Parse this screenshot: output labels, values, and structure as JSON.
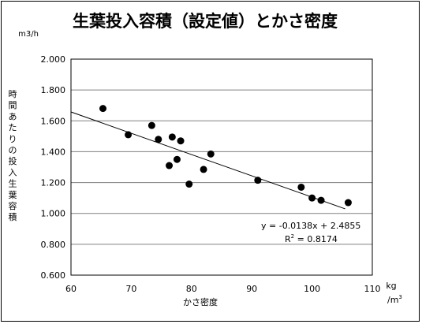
{
  "chart_data": {
    "type": "scatter",
    "title": "生葉投入容積（設定値）とかさ密度",
    "unit_label": "m3/h",
    "ylabel": "時間あたりの投入生葉容積",
    "xlabel": "かさ密度",
    "x_unit_top": "kg",
    "x_unit_bottom": "/m",
    "x_unit_sup": "3",
    "xlim": [
      60,
      110
    ],
    "ylim": [
      0.6,
      2.0
    ],
    "x_ticks": [
      "60",
      "70",
      "80",
      "90",
      "100",
      "110"
    ],
    "y_ticks": [
      "0.600",
      "0.800",
      "1.000",
      "1.200",
      "1.400",
      "1.600",
      "1.800",
      "2.000"
    ],
    "grid": "horizontal",
    "points": [
      {
        "x": 65.3,
        "y": 1.68
      },
      {
        "x": 69.5,
        "y": 1.51
      },
      {
        "x": 73.4,
        "y": 1.57
      },
      {
        "x": 74.5,
        "y": 1.48
      },
      {
        "x": 76.3,
        "y": 1.31
      },
      {
        "x": 76.8,
        "y": 1.495
      },
      {
        "x": 77.6,
        "y": 1.35
      },
      {
        "x": 78.2,
        "y": 1.47
      },
      {
        "x": 79.6,
        "y": 1.19
      },
      {
        "x": 82.0,
        "y": 1.285
      },
      {
        "x": 83.2,
        "y": 1.385
      },
      {
        "x": 91.0,
        "y": 1.215
      },
      {
        "x": 98.2,
        "y": 1.17
      },
      {
        "x": 100.0,
        "y": 1.1
      },
      {
        "x": 101.5,
        "y": 1.085
      },
      {
        "x": 106.0,
        "y": 1.07
      }
    ],
    "trendline": {
      "slope": -0.0138,
      "intercept": 2.4855,
      "x_start": 60,
      "x_end": 105.5
    },
    "equation_text": "y = -0.0138x + 2.4855",
    "r2_prefix": "R",
    "r2_sup": "2",
    "r2_value": " = 0.8174",
    "marker_color": "#000000",
    "line_color": "#000000",
    "grid_color": "#808080"
  }
}
